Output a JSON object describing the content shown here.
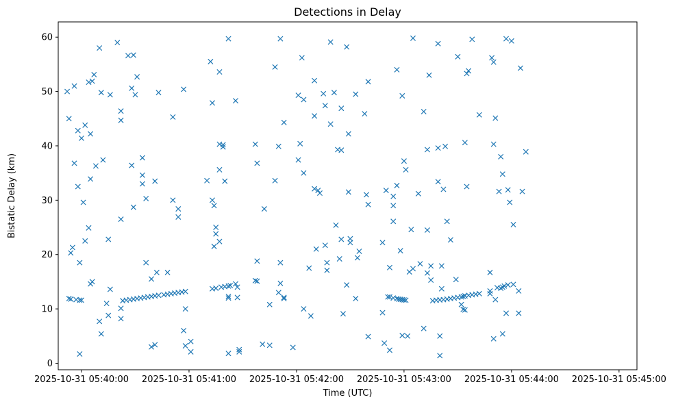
{
  "chart_data": {
    "type": "scatter",
    "title": "Detections in Delay",
    "xlabel": "Time (UTC)",
    "ylabel": "Bistatic Delay (km)",
    "x_unit": "seconds after 2025-10-31 05:40:00 UTC",
    "xlim": [
      -13,
      310
    ],
    "ylim": [
      -1.2,
      62.8
    ],
    "x_ticks": [
      {
        "value": 0,
        "label": "2025-10-31 05:40:00"
      },
      {
        "value": 60,
        "label": "2025-10-31 05:41:00"
      },
      {
        "value": 120,
        "label": "2025-10-31 05:42:00"
      },
      {
        "value": 180,
        "label": "2025-10-31 05:43:00"
      },
      {
        "value": 240,
        "label": "2025-10-31 05:44:00"
      },
      {
        "value": 300,
        "label": "2025-10-31 05:45:00"
      }
    ],
    "y_ticks": [
      {
        "value": 0,
        "label": "0"
      },
      {
        "value": 10,
        "label": "10"
      },
      {
        "value": 20,
        "label": "20"
      },
      {
        "value": 30,
        "label": "30"
      },
      {
        "value": 40,
        "label": "40"
      },
      {
        "value": 50,
        "label": "50"
      },
      {
        "value": 60,
        "label": "60"
      }
    ],
    "marker": "x",
    "color": "#1f77b4",
    "grid": false,
    "series": [
      {
        "name": "detections",
        "points": [
          [
            -8,
            50
          ],
          [
            -7,
            45
          ],
          [
            -6,
            20.3
          ],
          [
            -5,
            21.3
          ],
          [
            -4,
            51
          ],
          [
            -4,
            36.8
          ],
          [
            -2,
            42.8
          ],
          [
            -2,
            32.5
          ],
          [
            0,
            41.4
          ],
          [
            -1,
            18.5
          ],
          [
            -1,
            1.7
          ],
          [
            -7,
            11.9
          ],
          [
            -6,
            11.8
          ],
          [
            -3,
            11.7
          ],
          [
            -1,
            11.6
          ],
          [
            0,
            11.6
          ],
          [
            10,
            58
          ],
          [
            11,
            49.8
          ],
          [
            16,
            49.4
          ],
          [
            20,
            59
          ],
          [
            22,
            46.4
          ],
          [
            22,
            44.7
          ],
          [
            22,
            26.5
          ],
          [
            22,
            8.2
          ],
          [
            22,
            10.1
          ],
          [
            10,
            7.7
          ],
          [
            11,
            5.4
          ],
          [
            14,
            11
          ],
          [
            15,
            8.8
          ],
          [
            15,
            22.8
          ],
          [
            16,
            13.6
          ],
          [
            6,
            15
          ],
          [
            7,
            53.1
          ],
          [
            8,
            36.3
          ],
          [
            5,
            42.2
          ],
          [
            5,
            33.9
          ],
          [
            5,
            14.6
          ],
          [
            4,
            51.7
          ],
          [
            4,
            24.9
          ],
          [
            6,
            51.9
          ],
          [
            12,
            37.4
          ],
          [
            2,
            43.8
          ],
          [
            2,
            22.5
          ],
          [
            1,
            29.6
          ],
          [
            26,
            56.6
          ],
          [
            28,
            50.6
          ],
          [
            28,
            36.4
          ],
          [
            29,
            56.7
          ],
          [
            29,
            28.7
          ],
          [
            30,
            49.4
          ],
          [
            31,
            52.7
          ],
          [
            34,
            37.8
          ],
          [
            34,
            34.6
          ],
          [
            34,
            33
          ],
          [
            36,
            30.3
          ],
          [
            36,
            18.5
          ],
          [
            39,
            15.5
          ],
          [
            39,
            3
          ],
          [
            41,
            33.5
          ],
          [
            41,
            3.4
          ],
          [
            42,
            16.7
          ],
          [
            43,
            49.8
          ],
          [
            23,
            11.5
          ],
          [
            25,
            11.6
          ],
          [
            27,
            11.7
          ],
          [
            29,
            11.8
          ],
          [
            31,
            11.9
          ],
          [
            33,
            12
          ],
          [
            35,
            12.1
          ],
          [
            37,
            12.2
          ],
          [
            39,
            12.3
          ],
          [
            41,
            12.4
          ],
          [
            43,
            12.5
          ],
          [
            46,
            12.6
          ],
          [
            48,
            12.7
          ],
          [
            50,
            12.8
          ],
          [
            52,
            12.9
          ],
          [
            54,
            13
          ],
          [
            56,
            13.1
          ],
          [
            58,
            13.2
          ],
          [
            48,
            16.7
          ],
          [
            51,
            30
          ],
          [
            51,
            45.3
          ],
          [
            54,
            26.9
          ],
          [
            54,
            28.4
          ],
          [
            57,
            50.4
          ],
          [
            57,
            6
          ],
          [
            58,
            10
          ],
          [
            58,
            3.2
          ],
          [
            61,
            4
          ],
          [
            61,
            2.1
          ],
          [
            72,
            55.5
          ],
          [
            73,
            47.9
          ],
          [
            73,
            30
          ],
          [
            74,
            29
          ],
          [
            74,
            21.5
          ],
          [
            75,
            25
          ],
          [
            75,
            23.8
          ],
          [
            77,
            22.4
          ],
          [
            77,
            53.6
          ],
          [
            77,
            35.6
          ],
          [
            77,
            40.3
          ],
          [
            79,
            40.2
          ],
          [
            79,
            39.8
          ],
          [
            80,
            33.5
          ],
          [
            82,
            59.7
          ],
          [
            82,
            1.8
          ],
          [
            70,
            33.6
          ],
          [
            73,
            13.7
          ],
          [
            75,
            13.8
          ],
          [
            78,
            14
          ],
          [
            80,
            14.1
          ],
          [
            82,
            14.2
          ],
          [
            83,
            14.3
          ],
          [
            82,
            12.3
          ],
          [
            82,
            12
          ],
          [
            86,
            48.3
          ],
          [
            86,
            14.6
          ],
          [
            87,
            14
          ],
          [
            87,
            12.1
          ],
          [
            88,
            2.5
          ],
          [
            88,
            2.1
          ],
          [
            97,
            40.3
          ],
          [
            98,
            36.8
          ],
          [
            98,
            18.8
          ],
          [
            97,
            15.2
          ],
          [
            98,
            15.1
          ],
          [
            101,
            3.5
          ],
          [
            102,
            28.4
          ],
          [
            105,
            10.8
          ],
          [
            105,
            3.3
          ],
          [
            108,
            54.5
          ],
          [
            108,
            33.6
          ],
          [
            110,
            13
          ],
          [
            110,
            39.9
          ],
          [
            111,
            18.5
          ],
          [
            111,
            14.7
          ],
          [
            111,
            59.7
          ],
          [
            113,
            44.3
          ],
          [
            113,
            12.1
          ],
          [
            113,
            11.9
          ],
          [
            118,
            2.9
          ],
          [
            121,
            49.3
          ],
          [
            121,
            37.4
          ],
          [
            122,
            40.4
          ],
          [
            123,
            56.2
          ],
          [
            124,
            48.5
          ],
          [
            124,
            35
          ],
          [
            124,
            10
          ],
          [
            127,
            17.5
          ],
          [
            128,
            8.7
          ],
          [
            130,
            52
          ],
          [
            130,
            45.5
          ],
          [
            130,
            32.1
          ],
          [
            131,
            21
          ],
          [
            132,
            31.8
          ],
          [
            133,
            31.3
          ],
          [
            135,
            49.6
          ],
          [
            136,
            47.4
          ],
          [
            136,
            21.7
          ],
          [
            137,
            18.5
          ],
          [
            137,
            17.1
          ],
          [
            139,
            59.1
          ],
          [
            139,
            44
          ],
          [
            141,
            49.8
          ],
          [
            142,
            25.4
          ],
          [
            143,
            39.3
          ],
          [
            144,
            19.2
          ],
          [
            145,
            46.9
          ],
          [
            145,
            39.2
          ],
          [
            145,
            22.8
          ],
          [
            146,
            9.1
          ],
          [
            148,
            58.2
          ],
          [
            148,
            14.4
          ],
          [
            149,
            42.2
          ],
          [
            149,
            31.5
          ],
          [
            150,
            22.9
          ],
          [
            150,
            22.2
          ],
          [
            153,
            49.5
          ],
          [
            153,
            11.9
          ],
          [
            154,
            19.4
          ],
          [
            155,
            20.6
          ],
          [
            158,
            45.9
          ],
          [
            159,
            31
          ],
          [
            160,
            51.8
          ],
          [
            160,
            29.2
          ],
          [
            160,
            4.9
          ],
          [
            168,
            22.2
          ],
          [
            168,
            9.3
          ],
          [
            169,
            3.7
          ],
          [
            170,
            31.8
          ],
          [
            171,
            12.2
          ],
          [
            172,
            17.6
          ],
          [
            172,
            2.4
          ],
          [
            174,
            30.7
          ],
          [
            174,
            29
          ],
          [
            174,
            26.1
          ],
          [
            176,
            54
          ],
          [
            176,
            32.7
          ],
          [
            178,
            20.7
          ],
          [
            179,
            49.2
          ],
          [
            179,
            5.1
          ],
          [
            180,
            37.2
          ],
          [
            181,
            35.6
          ],
          [
            182,
            5
          ],
          [
            183,
            16.8
          ],
          [
            184,
            24.6
          ],
          [
            185,
            17.4
          ],
          [
            185,
            59.8
          ],
          [
            188,
            31.2
          ],
          [
            189,
            18.3
          ],
          [
            191,
            46.3
          ],
          [
            191,
            6.4
          ],
          [
            193,
            39.3
          ],
          [
            193,
            24.5
          ],
          [
            194,
            53
          ],
          [
            193,
            16.6
          ],
          [
            195,
            17.9
          ],
          [
            195,
            15.3
          ],
          [
            199,
            58.8
          ],
          [
            199,
            33.4
          ],
          [
            199,
            39.6
          ],
          [
            200,
            5
          ],
          [
            200,
            1.4
          ],
          [
            201,
            13.7
          ],
          [
            201,
            17.9
          ],
          [
            202,
            32
          ],
          [
            203,
            39.9
          ],
          [
            204,
            26.1
          ],
          [
            206,
            22.7
          ],
          [
            209,
            15.4
          ],
          [
            210,
            56.4
          ],
          [
            212,
            10.8
          ],
          [
            213,
            9.9
          ],
          [
            214,
            40.6
          ],
          [
            214,
            9.8
          ],
          [
            215,
            53.3
          ],
          [
            216,
            53.8
          ],
          [
            215,
            32.5
          ],
          [
            218,
            59.6
          ],
          [
            222,
            45.7
          ],
          [
            172,
            12.2
          ],
          [
            174,
            12
          ],
          [
            176,
            11.9
          ],
          [
            177,
            11.8
          ],
          [
            178,
            11.75
          ],
          [
            179,
            11.7
          ],
          [
            180,
            11.65
          ],
          [
            181,
            11.6
          ],
          [
            196,
            11.5
          ],
          [
            198,
            11.6
          ],
          [
            200,
            11.65
          ],
          [
            202,
            11.7
          ],
          [
            204,
            11.8
          ],
          [
            206,
            11.9
          ],
          [
            208,
            12
          ],
          [
            210,
            12.1
          ],
          [
            212,
            12.2
          ],
          [
            213,
            12.3
          ],
          [
            214,
            12.4
          ],
          [
            216,
            12.5
          ],
          [
            218,
            12.6
          ],
          [
            220,
            12.7
          ],
          [
            222,
            12.8
          ],
          [
            228,
            16.7
          ],
          [
            228,
            12.8
          ],
          [
            228,
            13.3
          ],
          [
            229,
            56.2
          ],
          [
            230,
            55.4
          ],
          [
            230,
            40.3
          ],
          [
            230,
            4.5
          ],
          [
            231,
            45.1
          ],
          [
            231,
            11.7
          ],
          [
            232,
            13.9
          ],
          [
            233,
            31.6
          ],
          [
            234,
            13.8
          ],
          [
            234,
            38
          ],
          [
            235,
            34.8
          ],
          [
            235,
            14
          ],
          [
            235,
            5.4
          ],
          [
            236,
            14.2
          ],
          [
            237,
            9.2
          ],
          [
            237,
            59.7
          ],
          [
            238,
            31.9
          ],
          [
            238,
            14.4
          ],
          [
            239,
            29.6
          ],
          [
            240,
            59.3
          ],
          [
            241,
            25.5
          ],
          [
            241,
            14.5
          ],
          [
            244,
            13.3
          ],
          [
            244,
            9.2
          ],
          [
            245,
            54.3
          ],
          [
            246,
            31.6
          ],
          [
            248,
            38.9
          ]
        ]
      }
    ]
  }
}
